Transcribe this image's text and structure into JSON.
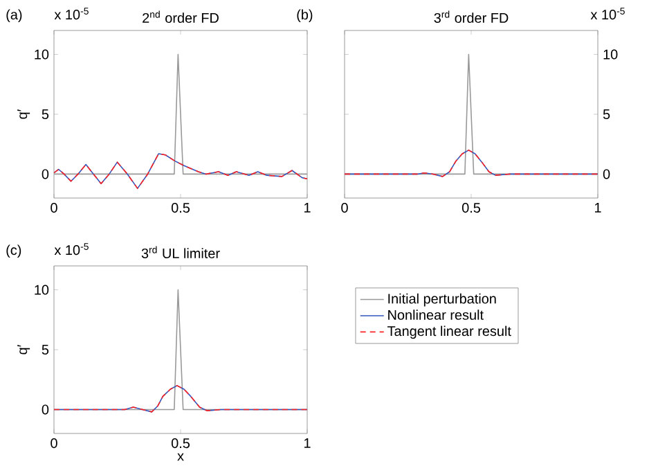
{
  "chart_data": [
    {
      "type": "line",
      "title": "2$^{nd}$ order FD",
      "ylabel": "q′",
      "annotations": [
        "(a)",
        "x 10$^{-5}$"
      ],
      "x": [
        0,
        0.018,
        0.04,
        0.067,
        0.095,
        0.126,
        0.156,
        0.186,
        0.218,
        0.25,
        0.29,
        0.33,
        0.37,
        0.413,
        0.44,
        0.477,
        0.514,
        0.57,
        0.6,
        0.65,
        0.687,
        0.72,
        0.77,
        0.805,
        0.84,
        0.9,
        0.94,
        0.98,
        1
      ],
      "xlim": [
        0,
        1
      ],
      "ylim": [
        -2,
        12
      ],
      "xticks": [
        0,
        0.5,
        1
      ],
      "yticks": [
        0,
        5,
        10
      ],
      "series": [
        {
          "color": "#999999",
          "x": [
            0,
            0.475,
            0.49,
            0.51,
            1
          ],
          "values": [
            0,
            0,
            10,
            0,
            0
          ]
        },
        {
          "color": "#3355bb",
          "values": [
            0.1,
            0.4,
            0,
            -0.6,
            0,
            0.8,
            0,
            -0.8,
            0,
            1.0,
            0,
            -1.2,
            0,
            1.7,
            1.6,
            1.1,
            0.7,
            0.2,
            0,
            0.2,
            -0.1,
            0.2,
            -0.1,
            0.2,
            -0.1,
            -0.2,
            0.3,
            -0.3,
            -0.4
          ]
        },
        {
          "color": "#ff2222",
          "line_style": "dashed",
          "values": [
            0.1,
            0.4,
            0,
            -0.6,
            0,
            0.8,
            0,
            -0.8,
            0,
            1.0,
            0,
            -1.2,
            0,
            1.7,
            1.6,
            1.1,
            0.7,
            0.2,
            0,
            0.2,
            -0.1,
            0.2,
            -0.1,
            0.2,
            -0.1,
            -0.2,
            0.3,
            -0.3,
            -0.4
          ]
        }
      ]
    },
    {
      "type": "line",
      "title": "3$^{rd}$ order FD",
      "annotations": [
        "(b)",
        "x 10$^{-5}$"
      ],
      "x": [
        0,
        0.287,
        0.315,
        0.35,
        0.387,
        0.415,
        0.44,
        0.465,
        0.49,
        0.515,
        0.542,
        0.57,
        0.596,
        0.65,
        1
      ],
      "xlim": [
        0,
        1
      ],
      "ylim": [
        -2,
        12
      ],
      "xticks": [
        0,
        0.5,
        1
      ],
      "yticks": [
        0,
        5,
        10
      ],
      "series": [
        {
          "color": "#999999",
          "x": [
            0,
            0.475,
            0.49,
            0.51,
            1
          ],
          "values": [
            0,
            0,
            10,
            0,
            0
          ]
        },
        {
          "color": "#3355bb",
          "values": [
            0,
            0,
            0.1,
            0,
            -0.2,
            0.2,
            1.1,
            1.7,
            2.0,
            1.7,
            1.0,
            0.2,
            -0.1,
            0,
            0
          ]
        },
        {
          "color": "#ff2222",
          "line_style": "dashed",
          "values": [
            0,
            0,
            0.1,
            0,
            -0.2,
            0.2,
            1.1,
            1.7,
            2.0,
            1.7,
            1.0,
            0.2,
            -0.1,
            0,
            0
          ]
        }
      ]
    },
    {
      "type": "line",
      "title": "3$^{rd}$ UL limiter",
      "xlabel": "x",
      "ylabel": "q′",
      "annotations": [
        "(c)",
        "x 10$^{-5}$"
      ],
      "legend": "right",
      "x": [
        0,
        0.28,
        0.313,
        0.35,
        0.386,
        0.41,
        0.43,
        0.46,
        0.486,
        0.513,
        0.54,
        0.575,
        0.605,
        0.66,
        1
      ],
      "xlim": [
        0,
        1
      ],
      "ylim": [
        -2,
        12
      ],
      "xticks": [
        0,
        0.5,
        1
      ],
      "yticks": [
        0,
        5,
        10
      ],
      "series": [
        {
          "name": "Initial perturbation",
          "color": "#999999",
          "x": [
            0,
            0.475,
            0.49,
            0.51,
            1
          ],
          "values": [
            0,
            0,
            10,
            0,
            0
          ]
        },
        {
          "name": "Nonlinear result",
          "color": "#3355bb",
          "values": [
            0,
            0,
            0.2,
            0,
            -0.2,
            0.3,
            1.1,
            1.7,
            2.0,
            1.7,
            1.1,
            0.2,
            -0.1,
            0,
            0
          ]
        },
        {
          "name": "Tangent linear result",
          "color": "#ff2222",
          "line_style": "dashed",
          "values": [
            0,
            0,
            0.2,
            0,
            -0.2,
            0.3,
            1.1,
            1.7,
            2.0,
            1.7,
            1.1,
            0.2,
            -0.1,
            0,
            0
          ]
        }
      ]
    }
  ]
}
